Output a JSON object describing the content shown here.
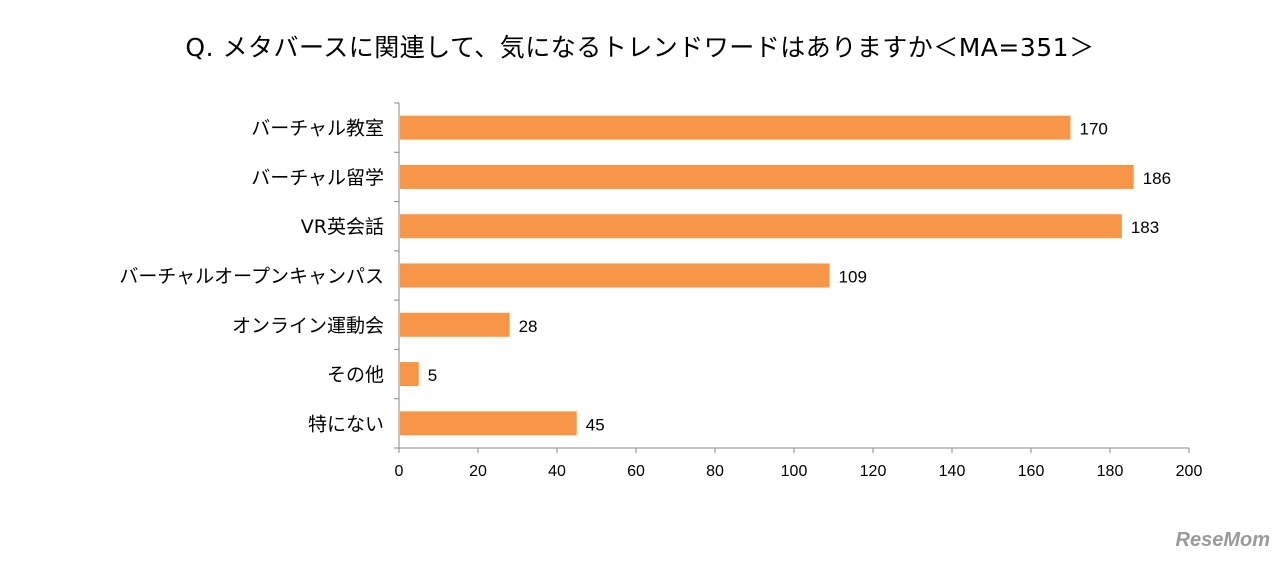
{
  "title": "Q. メタバースに関連して、気になるトレンドワードはありますか＜MA=351＞",
  "watermark": "ReseMom",
  "chart_data": {
    "type": "bar",
    "orientation": "horizontal",
    "categories": [
      "バーチャル教室",
      "バーチャル留学",
      "VR英会話",
      "バーチャルオープンキャンパス",
      "オンライン運動会",
      "その他",
      "特にない"
    ],
    "values": [
      170,
      186,
      183,
      109,
      28,
      5,
      45
    ],
    "data_labels": [
      "170",
      "186",
      "183",
      "109",
      "28",
      "5",
      "45"
    ],
    "xlim": [
      0,
      200
    ],
    "x_ticks": [
      0,
      20,
      40,
      60,
      80,
      100,
      120,
      140,
      160,
      180,
      200
    ],
    "grid": false,
    "bar_color": "#F79646"
  }
}
